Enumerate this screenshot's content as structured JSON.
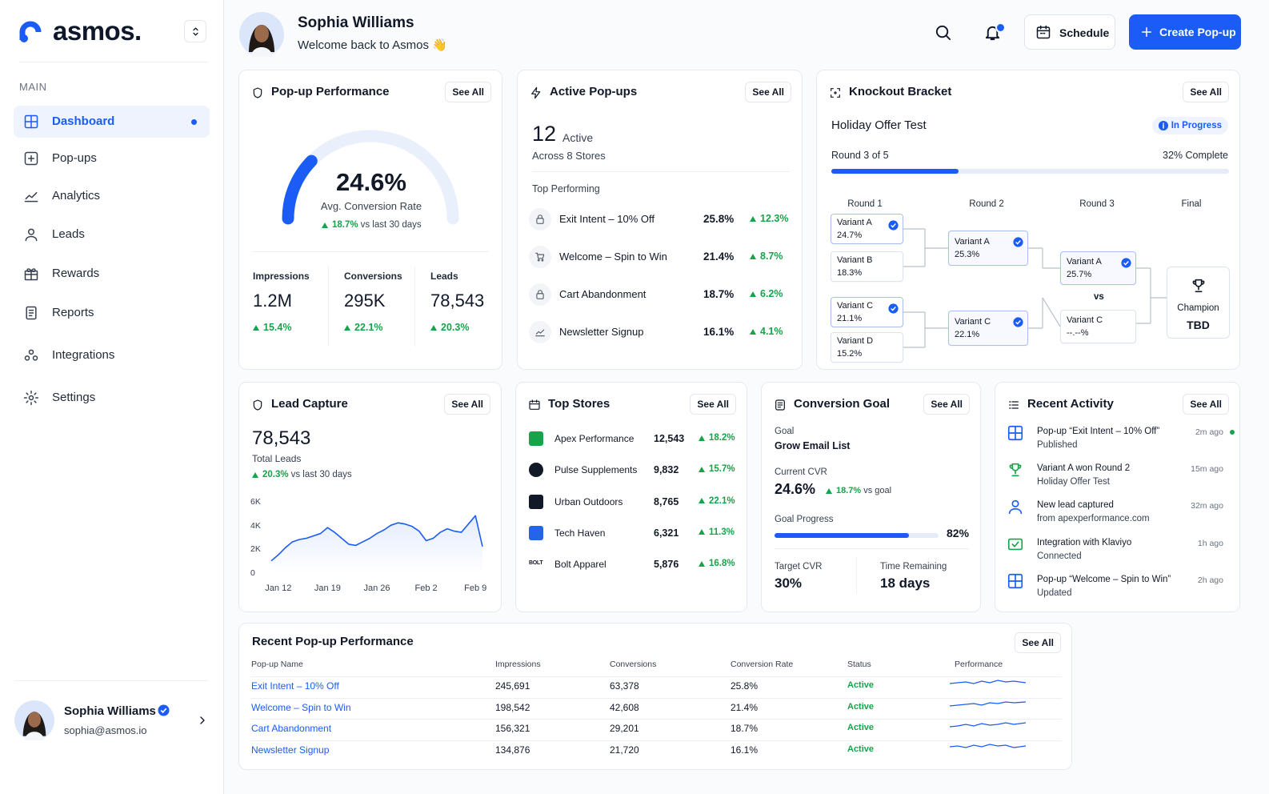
{
  "sidebar": {
    "brand": "asmos.",
    "section": "MAIN",
    "nav": [
      "Dashboard",
      "Pop-ups",
      "Analytics",
      "Leads",
      "Rewards",
      "Reports",
      "Integrations",
      "Settings"
    ],
    "user": {
      "name": "Sophia Williams",
      "email": "sophia@asmos.io"
    }
  },
  "header": {
    "name": "Sophia Williams",
    "greeting": "Welcome back to Asmos 👋",
    "schedule": "Schedule",
    "create": "Create Pop-up"
  },
  "popup_performance": {
    "title": "Pop-up Performance",
    "see_all": "See All",
    "rate": 24.6,
    "rate_label": "24.6%",
    "caption": "Avg. Conversion Rate",
    "change": "18.7%",
    "change_note": "vs last 30 days",
    "stats": [
      {
        "label": "Impressions",
        "value": "1.2M",
        "change": "15.4%"
      },
      {
        "label": "Conversions",
        "value": "295K",
        "change": "22.1%"
      },
      {
        "label": "Leads",
        "value": "78,543",
        "change": "20.3%"
      }
    ]
  },
  "active_popups": {
    "title": "Active Pop-ups",
    "see_all": "See All",
    "count": "12",
    "count_label": "Active",
    "subtitle": "Across 8 Stores",
    "section": "Top Performing",
    "items": [
      {
        "name": "Exit Intent – 10% Off",
        "rate": "25.8%",
        "change": "12.3%"
      },
      {
        "name": "Welcome – Spin to Win",
        "rate": "21.4%",
        "change": "8.7%"
      },
      {
        "name": "Cart Abandonment",
        "rate": "18.7%",
        "change": "6.2%"
      },
      {
        "name": "Newsletter Signup",
        "rate": "16.1%",
        "change": "4.1%"
      }
    ]
  },
  "bracket": {
    "title": "Knockout Bracket",
    "see_all": "See All",
    "test": "Holiday Offer Test",
    "status": "In Progress",
    "round": "Round 3 of 5",
    "progress": 32,
    "progress_label": "32% Complete",
    "rounds": [
      "Round 1",
      "Round 2",
      "Round 3",
      "Final"
    ],
    "round1": [
      {
        "name": "Variant A",
        "value": "24.7%",
        "winner": true
      },
      {
        "name": "Variant B",
        "value": "18.3%",
        "winner": false
      },
      {
        "name": "Variant C",
        "value": "21.1%",
        "winner": true
      },
      {
        "name": "Variant D",
        "value": "15.2%",
        "winner": false
      }
    ],
    "round2": [
      {
        "name": "Variant A",
        "value": "25.3%",
        "winner": true
      },
      {
        "name": "Variant C",
        "value": "22.1%",
        "winner": true
      }
    ],
    "round3": [
      {
        "name": "Variant A",
        "value": "25.7%",
        "winner": true
      },
      {
        "name": "Variant C",
        "value": "--.--%",
        "winner": false
      }
    ],
    "vs": "vs",
    "champion_label": "Champion",
    "champion": "TBD"
  },
  "lead_capture": {
    "title": "Lead Capture",
    "see_all": "See All",
    "total": "78,543",
    "total_label": "Total Leads",
    "change": "20.3%",
    "change_note": "vs last 30 days"
  },
  "chart_data": {
    "type": "line",
    "categories": [
      null,
      "Jan 12",
      null,
      null,
      null,
      null,
      null,
      null,
      "Jan 19",
      null,
      null,
      null,
      null,
      null,
      null,
      "Jan 26",
      null,
      null,
      null,
      null,
      null,
      null,
      "Feb 2",
      null,
      null,
      null,
      null,
      null,
      null,
      "Feb 9",
      null
    ],
    "values": [
      1100,
      1600,
      2200,
      2700,
      2900,
      3000,
      3200,
      3400,
      3900,
      3500,
      3000,
      2500,
      2400,
      2700,
      3000,
      3400,
      3700,
      4100,
      4300,
      4200,
      4000,
      3600,
      2800,
      3000,
      3500,
      3800,
      3600,
      3500,
      4200,
      4900,
      2300
    ],
    "color": "#1a5cf5",
    "ylim": [
      0,
      6000
    ],
    "yticks": [
      0,
      {
        "value": 2000,
        "label": "2K"
      },
      {
        "value": 4000,
        "label": "4K"
      },
      {
        "value": 6000,
        "label": "6K"
      }
    ],
    "grid": false
  },
  "top_stores": {
    "title": "Top Stores",
    "see_all": "See All",
    "items": [
      {
        "name": "Apex Performance",
        "value": "12,543",
        "change": "18.2%"
      },
      {
        "name": "Pulse Supplements",
        "value": "9,832",
        "change": "15.7%"
      },
      {
        "name": "Urban Outdoors",
        "value": "8,765",
        "change": "22.1%"
      },
      {
        "name": "Tech Haven",
        "value": "6,321",
        "change": "11.3%"
      },
      {
        "name": "Bolt Apparel",
        "value": "5,876",
        "change": "16.8%",
        "logo": "BOLT"
      }
    ]
  },
  "conversion_goal": {
    "title": "Conversion Goal",
    "see_all": "See All",
    "goal_label": "Goal",
    "goal": "Grow Email List",
    "cvr_label": "Current CVR",
    "cvr": "24.6%",
    "cvr_change": "18.7%",
    "cvr_change_note": "vs goal",
    "progress_title": "Goal Progress",
    "progress": 82,
    "progress_label": "82%",
    "target_label": "Target CVR",
    "target": "30%",
    "time_label": "Time Remaining",
    "time": "18 days"
  },
  "recent_activity": {
    "title": "Recent Activity",
    "see_all": "See All",
    "items": [
      {
        "title": "Pop-up “Exit Intent – 10% Off”",
        "sub": "Published",
        "time": "2m ago"
      },
      {
        "title": "Variant A won Round 2",
        "sub": "Holiday Offer Test",
        "time": "15m ago"
      },
      {
        "title": "New lead captured",
        "sub": "from apexperformance.com",
        "time": "32m ago"
      },
      {
        "title": "Integration with Klaviyo",
        "sub": "Connected",
        "time": "1h ago"
      },
      {
        "title": "Pop-up “Welcome – Spin to Win”",
        "sub": "Updated",
        "time": "2h ago"
      }
    ]
  },
  "table": {
    "title": "Recent Pop-up Performance",
    "see_all": "See All",
    "columns": [
      "Pop-up Name",
      "Impressions",
      "Conversions",
      "Conversion Rate",
      "Status",
      "Performance"
    ],
    "rows": [
      [
        "Exit Intent – 10% Off",
        "245,691",
        "63,378",
        "25.8%",
        "Active"
      ],
      [
        "Welcome – Spin to Win",
        "198,542",
        "42,608",
        "21.4%",
        "Active"
      ],
      [
        "Cart Abandonment",
        "156,321",
        "29,201",
        "18.7%",
        "Active"
      ],
      [
        "Newsletter Signup",
        "134,876",
        "21,720",
        "16.1%",
        "Active"
      ]
    ]
  }
}
